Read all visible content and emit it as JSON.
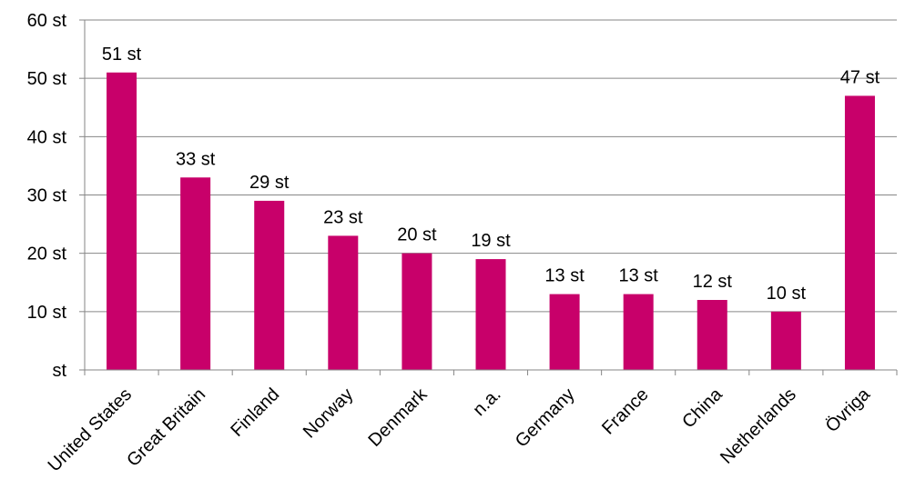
{
  "chart_data": {
    "type": "bar",
    "categories": [
      "United States",
      "Great Britain",
      "Finland",
      "Norway",
      "Denmark",
      "n.a.",
      "Germany",
      "France",
      "China",
      "Netherlands",
      "Övriga"
    ],
    "values": [
      51,
      33,
      29,
      23,
      20,
      19,
      13,
      13,
      12,
      10,
      47
    ],
    "data_labels": [
      "51 st",
      "33 st",
      "29 st",
      "23 st",
      "20 st",
      "19 st",
      "13 st",
      "13 st",
      "12 st",
      "10 st",
      "47 st"
    ],
    "title": "",
    "xlabel": "",
    "ylabel": "",
    "ylim": [
      0,
      60
    ],
    "y_ticks": [
      0,
      10,
      20,
      30,
      40,
      50,
      60
    ],
    "y_tick_labels": [
      "st",
      "10 st",
      "20 st",
      "30 st",
      "40 st",
      "50 st",
      "60 st"
    ],
    "grid": true,
    "bar_color": "#c8006a",
    "grid_color": "#868686"
  }
}
